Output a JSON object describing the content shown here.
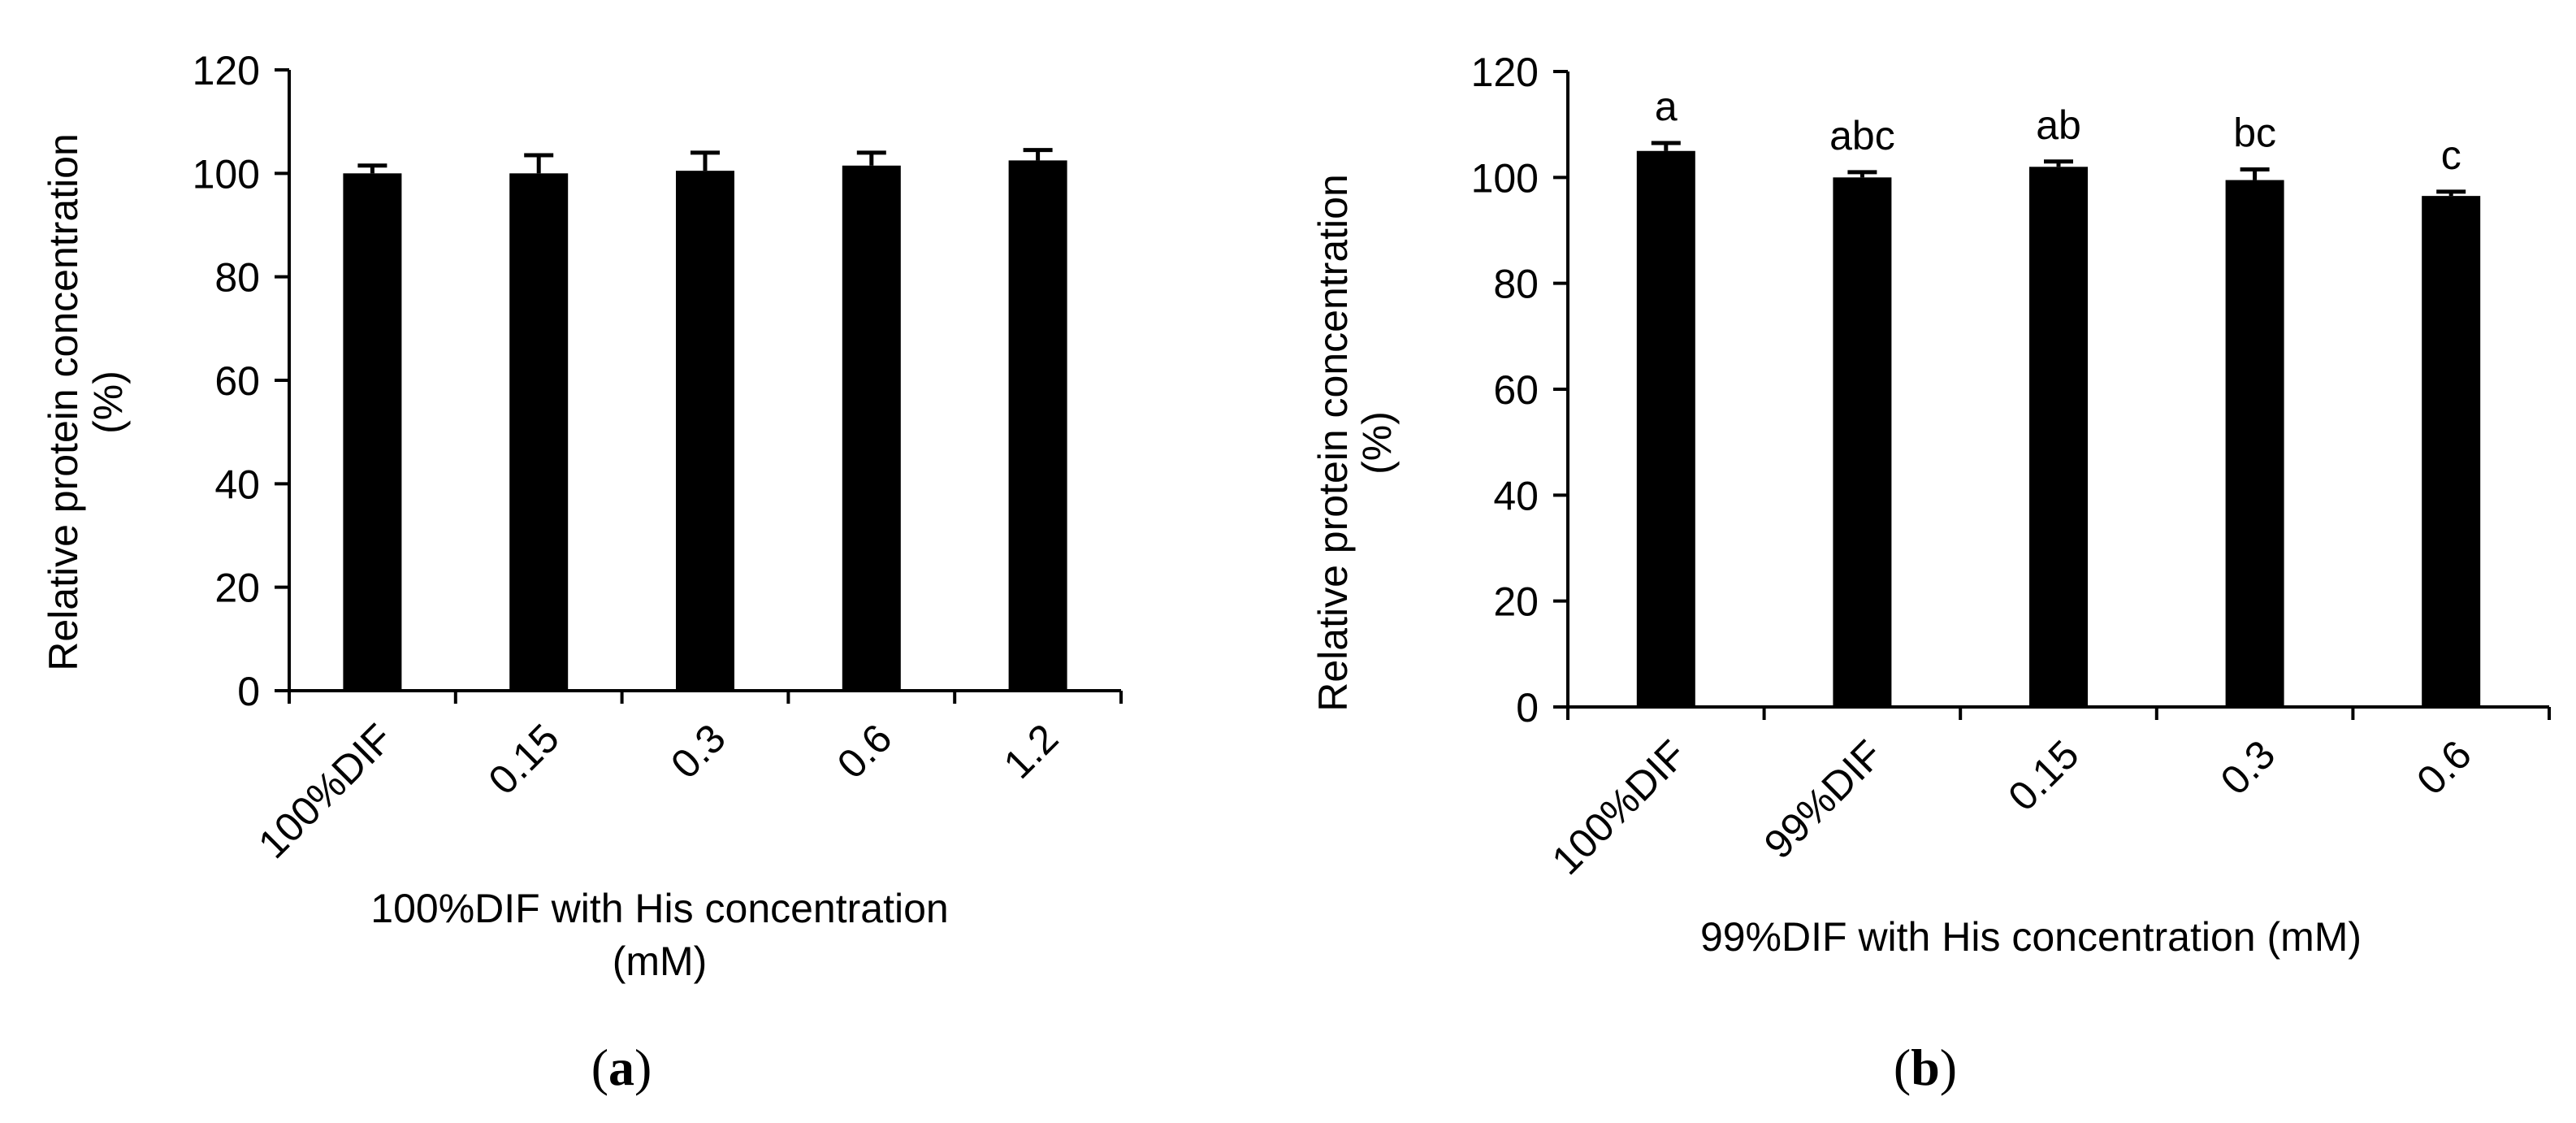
{
  "chart_data": [
    {
      "type": "bar",
      "panel_label": "a",
      "categories": [
        "100%DIF",
        "0.15",
        "0.3",
        "0.6",
        "1.2"
      ],
      "values": [
        100,
        100,
        100.5,
        101.5,
        102.5
      ],
      "errors": [
        1.5,
        3.5,
        3.5,
        2.5,
        2
      ],
      "annotations": [],
      "xlabel": "100%DIF with His concentration (mM)",
      "xlabel_lines": [
        "100%DIF with His concentration",
        "(mM)"
      ],
      "ylabel": "Relative protein concentration (%)",
      "ylabel_lines": [
        "Relative protein concentration",
        "(%)"
      ],
      "ylim": [
        0,
        120
      ],
      "yticks": [
        0,
        20,
        40,
        60,
        80,
        100,
        120
      ],
      "grid": false,
      "color": "#000000"
    },
    {
      "type": "bar",
      "panel_label": "b",
      "categories": [
        "100%DIF",
        "99%DIF",
        "0.15",
        "0.3",
        "0.6"
      ],
      "values": [
        105,
        100,
        102,
        99.5,
        96.5
      ],
      "errors": [
        1.5,
        1,
        1,
        2,
        0.8
      ],
      "annotations": [
        "a",
        "abc",
        "ab",
        "bc",
        "c"
      ],
      "xlabel": "99%DIF with His concentration (mM)",
      "xlabel_lines": [
        "99%DIF with His concentration (mM)"
      ],
      "ylabel": "Relative protein concentration (%)",
      "ylabel_lines": [
        "Relative protein concentration",
        "(%)"
      ],
      "ylim": [
        0,
        120
      ],
      "yticks": [
        0,
        20,
        40,
        60,
        80,
        100,
        120
      ],
      "grid": false,
      "color": "#000000"
    }
  ]
}
